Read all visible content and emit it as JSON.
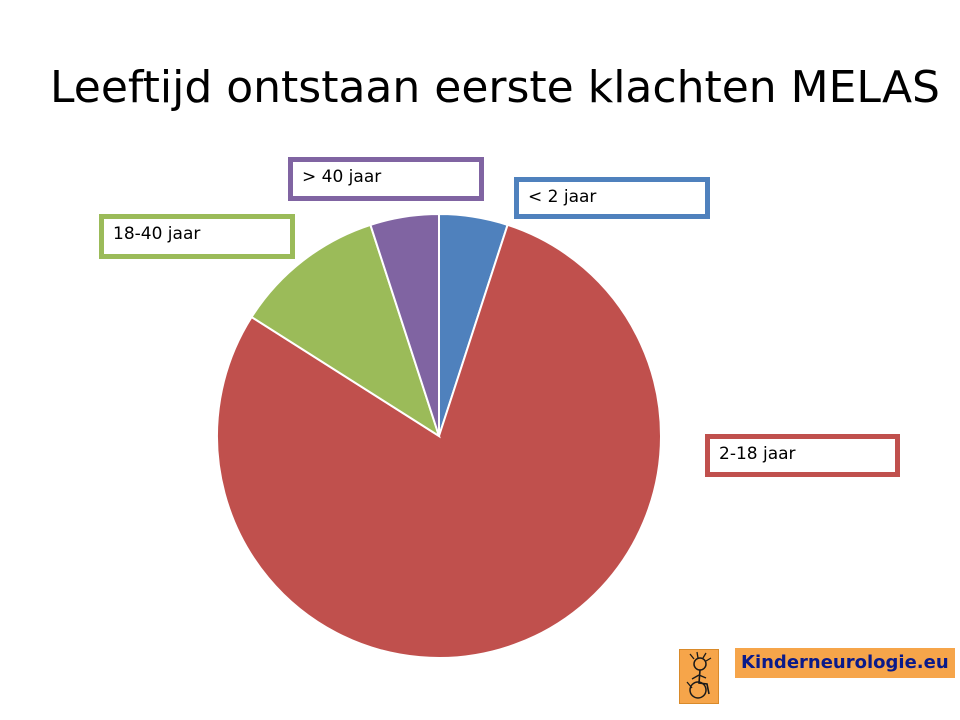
{
  "slide": {
    "title": "Leeftijd ontstaan eerste klachten MELAS"
  },
  "chart_data": {
    "type": "pie",
    "title": "Leeftijd ontstaan eerste klachten MELAS",
    "slices": [
      {
        "label": "< 2 jaar",
        "value": 5,
        "color": "#4f81bd"
      },
      {
        "label": "2-18 jaar",
        "value": 79,
        "color": "#c0504d"
      },
      {
        "label": "18-40 jaar",
        "value": 11,
        "color": "#9bbb59"
      },
      {
        "label": "> 40 jaar",
        "value": 5,
        "color": "#8064a2"
      }
    ],
    "start": "12 o'clock",
    "direction": "clockwise",
    "legend": "none (callout labels)"
  },
  "logo": {
    "text": "Kinderneurologie.eu",
    "icon": "child-wheelchair-icon"
  }
}
